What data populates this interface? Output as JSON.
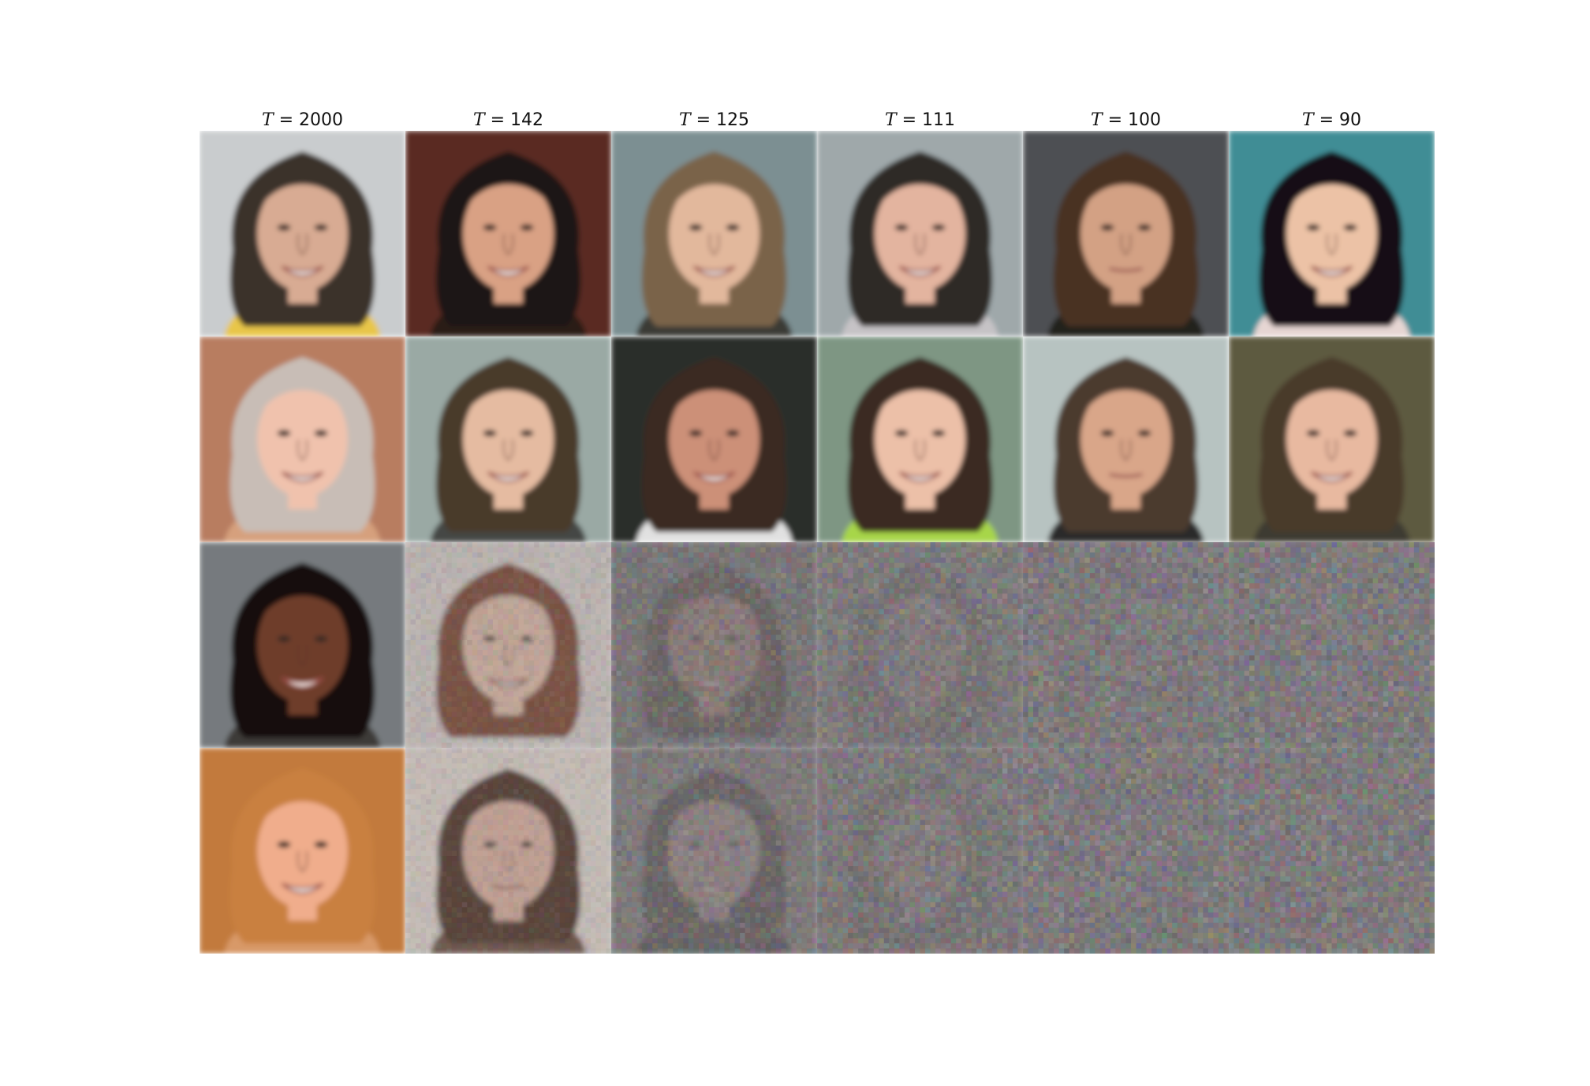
{
  "figure": {
    "columns": [
      {
        "var": "T",
        "rest": " = 2000",
        "noise": 0.0
      },
      {
        "var": "T",
        "rest": " = 142",
        "noise": 0.0
      },
      {
        "var": "T",
        "rest": " = 125",
        "noise": 0.0
      },
      {
        "var": "T",
        "rest": " = 111",
        "noise": 0.0
      },
      {
        "var": "T",
        "rest": " = 100",
        "noise": 0.0
      },
      {
        "var": "T",
        "rest": " = 90",
        "noise": 0.0
      }
    ],
    "rows": [
      {
        "noise": [
          0,
          0,
          0,
          0,
          0,
          0
        ],
        "faces": [
          {
            "bg": "#c9ccce",
            "skin": "#d8ab93",
            "hair": "#3a3129",
            "shirt": "#e8c64a",
            "expression": "smile"
          },
          {
            "bg": "#5a2a22",
            "skin": "#d9a184",
            "hair": "#1b1614",
            "shirt": "#2a1c18",
            "expression": "smile"
          },
          {
            "bg": "#7c8f92",
            "skin": "#e2b89c",
            "hair": "#7a6349",
            "shirt": "#3a3a34",
            "expression": "smile"
          },
          {
            "bg": "#9fa8aa",
            "skin": "#e3b49f",
            "hair": "#2f2a27",
            "shirt": "#c6c3c6",
            "expression": "smile"
          },
          {
            "bg": "#4d4f53",
            "skin": "#d3a184",
            "hair": "#4a3322",
            "shirt": "#24201e",
            "expression": "neutral"
          },
          {
            "bg": "#3f8d95",
            "skin": "#ecc2a6",
            "hair": "#121116",
            "shirt": "#e6d6d3",
            "expression": "smile"
          }
        ]
      },
      {
        "noise": [
          0,
          0,
          0,
          0,
          0,
          0
        ],
        "faces": [
          {
            "bg": "#b87d60",
            "skin": "#f0c2ad",
            "hair": "#c8bdb6",
            "shirt": "#d6a07d",
            "expression": "smile"
          },
          {
            "bg": "#9aa9a4",
            "skin": "#e5bba1",
            "hair": "#4a3a2a",
            "shirt": "#454745",
            "expression": "smile"
          },
          {
            "bg": "#2b2f2c",
            "skin": "#cc9078",
            "hair": "#3a2b24",
            "shirt": "#e1e1e1",
            "expression": "smile"
          },
          {
            "bg": "#7e9683",
            "skin": "#ecc0a8",
            "hair": "#3a2a20",
            "shirt": "#a7d64a",
            "expression": "smile"
          },
          {
            "bg": "#b7c3c1",
            "skin": "#d9a689",
            "hair": "#4b3a2e",
            "shirt": "#2a2a2b",
            "expression": "neutral"
          },
          {
            "bg": "#5d5a3f",
            "skin": "#e8b9a0",
            "hair": "#4a3a2a",
            "shirt": "#3c3b33",
            "expression": "smile"
          }
        ]
      },
      {
        "noise": [
          0.0,
          0.35,
          0.7,
          0.82,
          0.95,
          0.97
        ],
        "faces": [
          {
            "bg": "#767a7e",
            "skin": "#6e3d2a",
            "hair": "#141111",
            "shirt": "#3e3a38",
            "expression": "smile"
          },
          {
            "bg": "#e4d9d3",
            "skin": "#ecc2ab",
            "hair": "#7a3a24",
            "shirt": "#e6e0d9",
            "expression": "smile"
          },
          {
            "bg": "#6f6c6b",
            "skin": "#a07a6e",
            "hair": "#4a3b34",
            "shirt": "#6a6f80",
            "expression": "smile"
          },
          {
            "bg": "#7d7b7a",
            "skin": "#8e8280",
            "hair": "#5a5553",
            "shirt": "#6e6b6b",
            "expression": "neutral"
          },
          {
            "bg": "#7c7a7a",
            "skin": "#827e7d",
            "hair": "#6e6a69",
            "shirt": "#7a7777",
            "expression": "neutral"
          },
          {
            "bg": "#7c7a7a",
            "skin": "#817d7c",
            "hair": "#726e6d",
            "shirt": "#7a7777",
            "expression": "neutral"
          }
        ]
      },
      {
        "noise": [
          0.0,
          0.3,
          0.65,
          0.85,
          0.96,
          0.97
        ],
        "faces": [
          {
            "bg": "#c27a3d",
            "skin": "#f0ad8c",
            "hair": "#c9803f",
            "shirt": "#d89968",
            "expression": "smile"
          },
          {
            "bg": "#e9dcd3",
            "skin": "#e2b3a0",
            "hair": "#4a2a1c",
            "shirt": "#6a4a3a",
            "expression": "neutral"
          },
          {
            "bg": "#807a78",
            "skin": "#a78d88",
            "hair": "#4a403c",
            "shirt": "#3d3a3a",
            "expression": "smile"
          },
          {
            "bg": "#7b7675",
            "skin": "#9a8280",
            "hair": "#5d5654",
            "shirt": "#905a5e",
            "expression": "neutral"
          },
          {
            "bg": "#7c7a7a",
            "skin": "#807c7b",
            "hair": "#6f6b6a",
            "shirt": "#7a7777",
            "expression": "neutral"
          },
          {
            "bg": "#7c7a7a",
            "skin": "#807c7b",
            "hair": "#736f6e",
            "shirt": "#7a7777",
            "expression": "neutral"
          }
        ]
      }
    ]
  }
}
